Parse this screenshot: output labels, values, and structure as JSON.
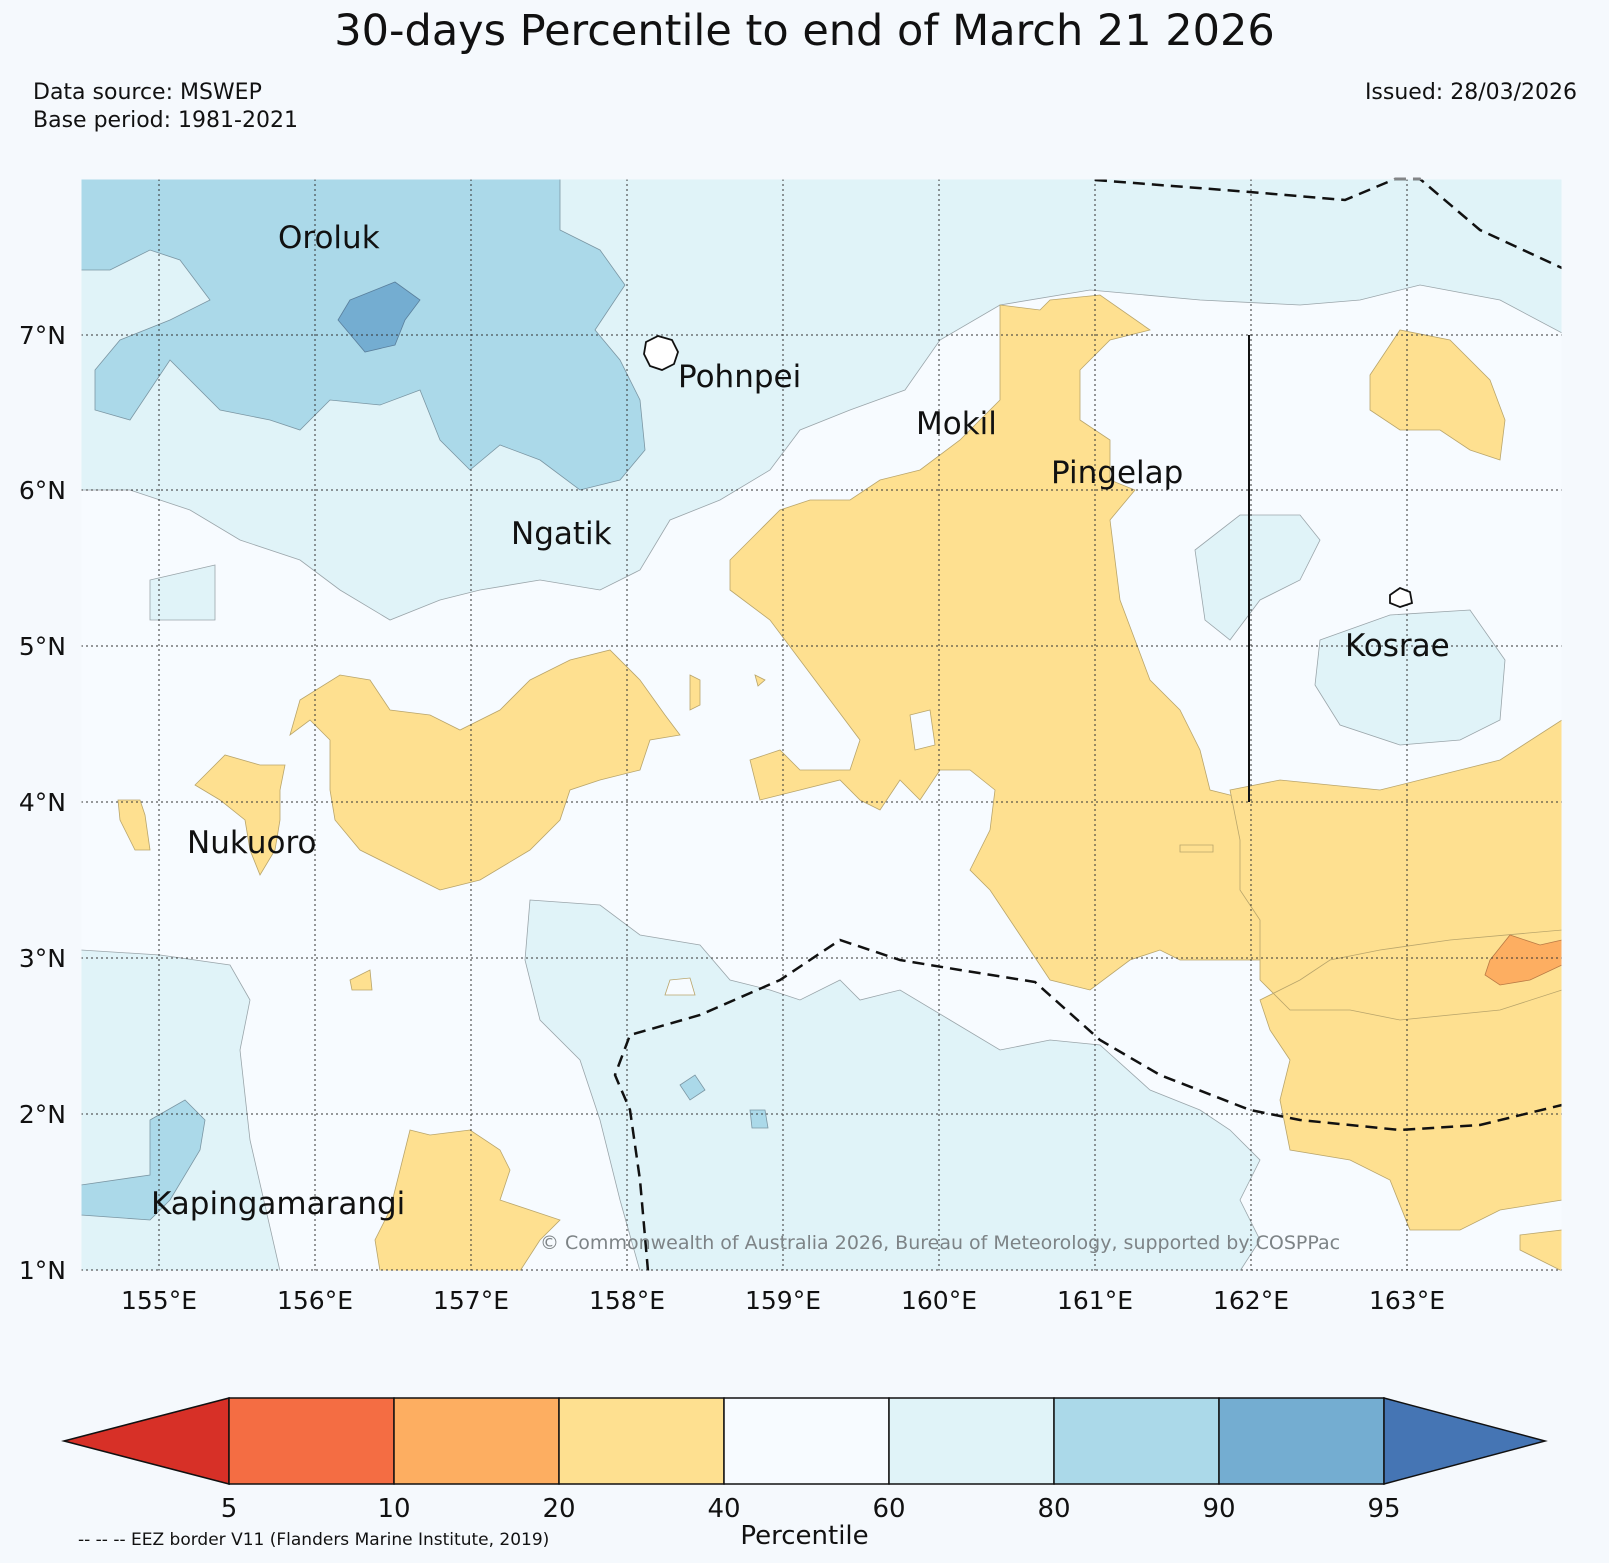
{
  "title": "30-days Percentile to end of March 21 2026",
  "data_source": "Data source: MSWEP",
  "base_period": "Base period: 1981-2021",
  "issued": "Issued: 28/03/2026",
  "copyright": "© Commonwealth of Australia 2026, Bureau of Meteorology, supported by COSPPac",
  "eez_note": "-- -- -- EEZ border V11 (Flanders Marine Institute, 2019)",
  "map": {
    "lon_ticks": [
      "155°E",
      "156°E",
      "157°E",
      "158°E",
      "159°E",
      "160°E",
      "161°E",
      "162°E",
      "163°E"
    ],
    "lat_ticks": [
      "7°N",
      "6°N",
      "5°N",
      "4°N",
      "3°N",
      "2°N",
      "1°N"
    ],
    "places": [
      {
        "name": "Oroluk"
      },
      {
        "name": "Pohnpei"
      },
      {
        "name": "Mokil"
      },
      {
        "name": "Pingelap"
      },
      {
        "name": "Ngatik"
      },
      {
        "name": "Kosrae"
      },
      {
        "name": "Nukuoro"
      },
      {
        "name": "Kapingamarangi"
      }
    ]
  },
  "colorbar": {
    "label": "Percentile",
    "ticks": [
      "5",
      "10",
      "20",
      "40",
      "60",
      "80",
      "90",
      "95"
    ],
    "colors": {
      "lt5": "#d73027",
      "c5_10": "#f46d43",
      "c10_20": "#fdae61",
      "c20_40": "#fee090",
      "c40_60": "#f7fbff",
      "c60_80": "#e0f3f8",
      "c80_90": "#abd9e9",
      "c90_95": "#74add1",
      "gt95": "#4575b4"
    }
  }
}
